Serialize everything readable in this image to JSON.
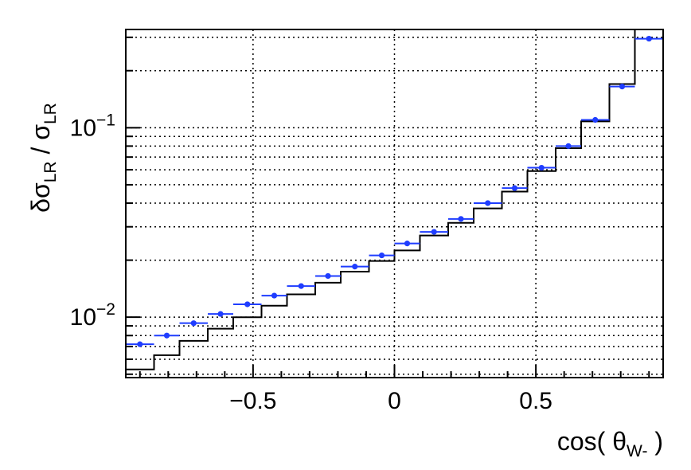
{
  "chart_data": {
    "type": "scatter",
    "title": "",
    "xlabel": {
      "main": "cos( θ",
      "sub": "W-",
      "close": " )"
    },
    "ylabel": {
      "d": "δσ",
      "sub1": "LR",
      "slash": " / σ",
      "sub2": "LR"
    },
    "x_range": [
      -0.95,
      0.95
    ],
    "y_range": [
      0.0048,
      0.33
    ],
    "y_scale": "log",
    "grid": true,
    "x_ticks": [
      -0.5,
      0,
      0.5
    ],
    "x_tick_labels": [
      "−0.5",
      "0",
      "0.5"
    ],
    "y_tick_labels": [
      {
        "base": "10",
        "exp": "−2",
        "value": 0.01
      },
      {
        "base": "10",
        "exp": "−1",
        "value": 0.1
      }
    ],
    "bin_edges": [
      -0.95,
      -0.85,
      -0.76,
      -0.66,
      -0.57,
      -0.47,
      -0.38,
      -0.28,
      -0.19,
      -0.09,
      0.0,
      0.09,
      0.19,
      0.28,
      0.38,
      0.47,
      0.57,
      0.66,
      0.76,
      0.85,
      0.95
    ],
    "series": [
      {
        "kind": "histogram",
        "color": "#000000",
        "values": [
          0.0053,
          0.0063,
          0.0075,
          0.0087,
          0.01,
          0.0115,
          0.0132,
          0.0152,
          0.0174,
          0.0198,
          0.0225,
          0.027,
          0.0315,
          0.0375,
          0.046,
          0.059,
          0.078,
          0.108,
          0.17,
          0.33
        ]
      },
      {
        "kind": "points",
        "color": "#1f3dff",
        "values": [
          0.0072,
          0.008,
          0.0093,
          0.0104,
          0.0117,
          0.013,
          0.0146,
          0.0165,
          0.0185,
          0.0212,
          0.0245,
          0.0282,
          0.033,
          0.04,
          0.048,
          0.0615,
          0.08,
          0.11,
          0.165,
          0.295
        ]
      }
    ]
  }
}
